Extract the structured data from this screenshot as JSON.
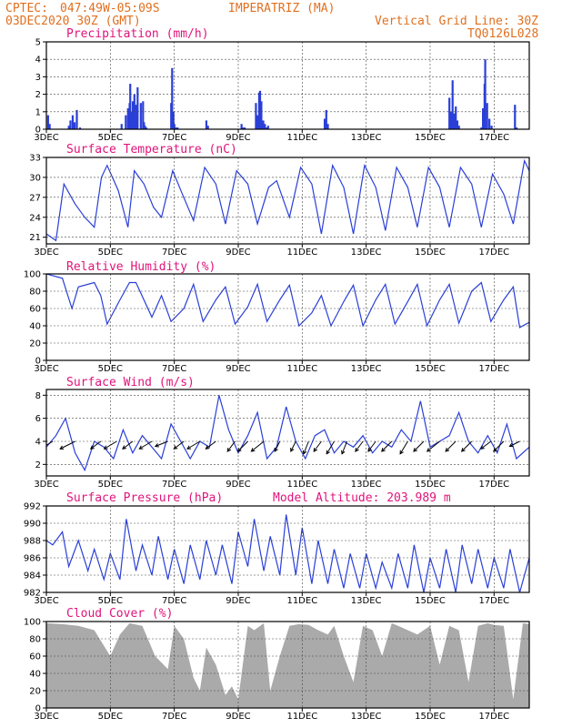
{
  "header": {
    "source": "CPTEC:",
    "coords": "047:49W-05:09S",
    "place": "IMPERATRIZ (MA)",
    "date": "03DEC2020 30Z (GMT)",
    "grid_note": "Vertical Grid Line: 30Z",
    "code": "TQ0126L028"
  },
  "colors": {
    "header": "#e07020",
    "title": "#e0147a",
    "line": "#2a3fd8",
    "cloud": "#aaaaaa",
    "arrow": "#000000"
  },
  "chart_data": [
    {
      "id": "precip",
      "type": "bar",
      "title": "Precipitation (mm/h)",
      "ylim": [
        0,
        5
      ],
      "yticks": [
        "0",
        "1",
        "2",
        "3",
        "4",
        "5"
      ],
      "xlim": [
        3,
        18.1
      ],
      "x_ticks": [
        "3DEC",
        "5DEC",
        "7DEC",
        "9DEC",
        "11DEC",
        "13DEC",
        "15DEC",
        "17DEC"
      ],
      "x": [
        3.05,
        3.1,
        3.7,
        3.75,
        3.82,
        3.88,
        3.95,
        4.05,
        5.35,
        5.48,
        5.55,
        5.6,
        5.62,
        5.65,
        5.7,
        5.75,
        5.8,
        5.85,
        5.95,
        6.02,
        6.05,
        6.08,
        6.12,
        6.9,
        6.93,
        6.97,
        7.0,
        7.05,
        7.1,
        8.0,
        8.05,
        9.1,
        9.15,
        9.2,
        9.55,
        9.6,
        9.65,
        9.68,
        9.72,
        9.78,
        9.83,
        9.88,
        9.93,
        11.7,
        11.75,
        11.8,
        15.6,
        15.65,
        15.7,
        15.75,
        15.8,
        15.85,
        15.9,
        16.6,
        16.65,
        16.7,
        16.72,
        16.78,
        16.85,
        16.92,
        17.65,
        17.7
      ],
      "values": [
        0.8,
        0.3,
        0.2,
        0.5,
        0.8,
        0.4,
        1.1,
        0.1,
        0.3,
        0.8,
        1.2,
        1.5,
        2.6,
        1.0,
        1.6,
        2.0,
        1.4,
        2.4,
        1.5,
        1.6,
        0.4,
        0.2,
        0.1,
        1.5,
        3.5,
        1.0,
        0.3,
        0.1,
        0.1,
        0.5,
        0.2,
        0.3,
        0.1,
        0.1,
        1.5,
        0.8,
        2.1,
        2.2,
        1.6,
        0.5,
        0.3,
        0.1,
        0.2,
        0.6,
        1.1,
        0.3,
        1.8,
        1.0,
        2.8,
        0.9,
        1.3,
        0.5,
        0.2,
        0.1,
        1.2,
        2.6,
        4.0,
        1.5,
        0.6,
        0.2,
        1.4,
        0.1
      ]
    },
    {
      "id": "temperature",
      "type": "line",
      "title": "Surface Temperature (nC)",
      "ylim": [
        20,
        33
      ],
      "yticks": [
        "21",
        "24",
        "27",
        "30",
        "33"
      ],
      "ytick_values": [
        21,
        24,
        27,
        30,
        33
      ],
      "xlim": [
        3,
        18.1
      ],
      "x_ticks": [
        "3DEC",
        "5DEC",
        "7DEC",
        "9DEC",
        "11DEC",
        "13DEC",
        "15DEC",
        "17DEC"
      ],
      "x": [
        3.0,
        3.3,
        3.55,
        3.9,
        4.2,
        4.5,
        4.72,
        4.9,
        5.25,
        5.55,
        5.75,
        6.05,
        6.35,
        6.6,
        6.95,
        7.25,
        7.6,
        7.95,
        8.3,
        8.6,
        8.95,
        9.3,
        9.6,
        9.95,
        10.2,
        10.6,
        10.95,
        11.3,
        11.6,
        11.95,
        12.3,
        12.6,
        12.95,
        13.3,
        13.6,
        13.95,
        14.3,
        14.6,
        14.95,
        15.3,
        15.6,
        15.95,
        16.3,
        16.6,
        16.95,
        17.3,
        17.6,
        17.95,
        18.1
      ],
      "values": [
        21.5,
        20.5,
        29.0,
        26.0,
        24.0,
        22.5,
        30.0,
        31.8,
        28.0,
        22.5,
        31.0,
        29.0,
        25.5,
        24.0,
        31.0,
        27.5,
        23.5,
        31.5,
        29.0,
        23.0,
        31.0,
        29.0,
        23.0,
        28.5,
        29.5,
        24.0,
        31.5,
        29.0,
        21.5,
        31.8,
        28.5,
        21.5,
        31.8,
        28.5,
        22.0,
        31.5,
        28.5,
        22.5,
        31.5,
        28.5,
        22.5,
        31.5,
        29.0,
        22.5,
        30.5,
        27.5,
        23.0,
        32.5,
        31.0
      ]
    },
    {
      "id": "humidity",
      "type": "line",
      "title": "Relative Humidity (%)",
      "ylim": [
        0,
        100
      ],
      "yticks": [
        "0",
        "20",
        "40",
        "60",
        "80",
        "100"
      ],
      "ytick_values": [
        0,
        20,
        40,
        60,
        80,
        100
      ],
      "xlim": [
        3,
        18.1
      ],
      "x_ticks": [
        "3DEC",
        "5DEC",
        "7DEC",
        "9DEC",
        "11DEC",
        "13DEC",
        "15DEC",
        "17DEC"
      ],
      "x": [
        3.0,
        3.5,
        3.8,
        4.0,
        4.5,
        4.7,
        4.9,
        5.3,
        5.6,
        5.8,
        6.3,
        6.6,
        6.9,
        7.3,
        7.6,
        7.9,
        8.3,
        8.6,
        8.9,
        9.3,
        9.6,
        9.9,
        10.3,
        10.6,
        10.9,
        11.3,
        11.6,
        11.9,
        12.3,
        12.6,
        12.9,
        13.3,
        13.6,
        13.9,
        14.3,
        14.6,
        14.9,
        15.3,
        15.6,
        15.9,
        16.3,
        16.6,
        16.9,
        17.3,
        17.6,
        17.8,
        18.1
      ],
      "values": [
        100,
        95,
        60,
        85,
        90,
        75,
        42,
        70,
        90,
        90,
        50,
        75,
        45,
        60,
        88,
        45,
        70,
        85,
        42,
        62,
        88,
        45,
        70,
        87,
        40,
        55,
        75,
        40,
        68,
        87,
        40,
        70,
        88,
        42,
        68,
        88,
        40,
        70,
        88,
        43,
        80,
        90,
        45,
        70,
        85,
        38,
        44
      ]
    },
    {
      "id": "wind",
      "type": "line",
      "title": "Surface Wind (m/s)",
      "ylim": [
        1,
        8.5
      ],
      "yticks": [
        "2",
        "4",
        "6",
        "8"
      ],
      "ytick_values": [
        2,
        4,
        6,
        8
      ],
      "xlim": [
        3,
        18.1
      ],
      "x_ticks": [
        "3DEC",
        "5DEC",
        "7DEC",
        "9DEC",
        "11DEC",
        "13DEC",
        "15DEC",
        "17DEC"
      ],
      "x": [
        3.0,
        3.3,
        3.6,
        3.9,
        4.2,
        4.5,
        4.8,
        5.1,
        5.4,
        5.7,
        6.0,
        6.3,
        6.6,
        6.9,
        7.2,
        7.5,
        7.8,
        8.1,
        8.4,
        8.7,
        9.0,
        9.3,
        9.6,
        9.9,
        10.2,
        10.5,
        10.8,
        11.1,
        11.4,
        11.7,
        12.0,
        12.3,
        12.6,
        12.9,
        13.2,
        13.5,
        13.8,
        14.1,
        14.4,
        14.7,
        15.0,
        15.3,
        15.6,
        15.9,
        16.2,
        16.5,
        16.8,
        17.1,
        17.4,
        17.7,
        18.1
      ],
      "values": [
        3.5,
        4.5,
        6.0,
        3.0,
        1.5,
        4.0,
        3.5,
        2.5,
        5.0,
        3.0,
        4.5,
        3.5,
        2.5,
        5.5,
        4.0,
        2.5,
        4.0,
        3.5,
        8.0,
        5.0,
        3.0,
        4.5,
        6.5,
        2.5,
        3.5,
        7.0,
        4.0,
        2.5,
        4.5,
        5.0,
        3.0,
        4.0,
        3.5,
        4.5,
        3.0,
        4.0,
        3.5,
        5.0,
        4.0,
        7.5,
        3.5,
        4.0,
        4.5,
        6.5,
        4.0,
        3.0,
        4.5,
        3.0,
        5.5,
        2.5,
        3.5
      ],
      "arrow_times": [
        3.2,
        3.9,
        4.7,
        5.2,
        5.7,
        6.3,
        6.8,
        7.3,
        7.8,
        8.3,
        8.9,
        9.3,
        9.8,
        10.3,
        10.8,
        11.2,
        11.6,
        12.0,
        12.4,
        12.9,
        13.3,
        13.8,
        14.3,
        14.8,
        15.3,
        15.8,
        16.3,
        16.9,
        17.3,
        17.8
      ],
      "arrow_u": [
        2.5,
        3.0,
        2.0,
        2.5,
        2.0,
        2.5,
        2.5,
        2.0,
        2.5,
        2.0,
        1.5,
        2.0,
        2.5,
        1.0,
        1.0,
        1.0,
        1.5,
        1.5,
        1.0,
        1.5,
        1.5,
        2.0,
        1.5,
        2.0,
        2.5,
        2.0,
        2.0,
        2.0,
        2.0,
        2.0
      ],
      "arrow_v": [
        1.5,
        1.5,
        1.5,
        1.5,
        1.5,
        1.5,
        1.0,
        1.5,
        1.5,
        1.5,
        2.0,
        2.0,
        2.0,
        2.0,
        2.0,
        2.5,
        2.0,
        2.5,
        2.5,
        2.0,
        2.0,
        2.0,
        2.5,
        2.0,
        2.0,
        2.0,
        2.0,
        1.5,
        2.0,
        1.0
      ]
    },
    {
      "id": "pressure",
      "type": "line",
      "title": "Surface Pressure (hPa)",
      "annotation": "Model Altitude: 203.989 m",
      "ylim": [
        982,
        992
      ],
      "yticks": [
        "982",
        "984",
        "986",
        "988",
        "990",
        "992"
      ],
      "ytick_values": [
        982,
        984,
        986,
        988,
        990,
        992
      ],
      "xlim": [
        3,
        18.1
      ],
      "x_ticks": [
        "3DEC",
        "5DEC",
        "7DEC",
        "9DEC",
        "11DEC",
        "13DEC",
        "15DEC",
        "17DEC"
      ],
      "x": [
        3.0,
        3.2,
        3.5,
        3.7,
        4.0,
        4.3,
        4.5,
        4.8,
        5.0,
        5.3,
        5.5,
        5.8,
        6.0,
        6.3,
        6.5,
        6.8,
        7.0,
        7.3,
        7.5,
        7.8,
        8.0,
        8.3,
        8.5,
        8.8,
        9.0,
        9.3,
        9.5,
        9.8,
        10.0,
        10.3,
        10.5,
        10.8,
        11.0,
        11.3,
        11.5,
        11.8,
        12.0,
        12.3,
        12.5,
        12.8,
        13.0,
        13.3,
        13.5,
        13.8,
        14.0,
        14.3,
        14.5,
        14.8,
        15.0,
        15.3,
        15.5,
        15.8,
        16.0,
        16.3,
        16.5,
        16.8,
        17.0,
        17.3,
        17.5,
        17.8,
        18.1
      ],
      "values": [
        988,
        987.5,
        989,
        985,
        988,
        984.5,
        987,
        983.5,
        986.5,
        983.5,
        990.5,
        984.5,
        987.5,
        984,
        988.5,
        983.5,
        987,
        983,
        987.5,
        983.5,
        988,
        984,
        987.5,
        983,
        989,
        985,
        990.5,
        984.5,
        988.5,
        984,
        991,
        984,
        989.5,
        983,
        988,
        983,
        987,
        982.5,
        986.5,
        982.5,
        986.5,
        982.5,
        985.5,
        982.5,
        986.5,
        982.5,
        987.5,
        982,
        986,
        982.5,
        987,
        982,
        987.5,
        983,
        987,
        982.5,
        986,
        982.5,
        987,
        982,
        986
      ]
    },
    {
      "id": "cloud",
      "type": "area",
      "title": "Cloud Cover (%)",
      "ylim": [
        0,
        100
      ],
      "yticks": [
        "0",
        "20",
        "40",
        "60",
        "80",
        "100"
      ],
      "ytick_values": [
        0,
        20,
        40,
        60,
        80,
        100
      ],
      "xlim": [
        3,
        18.1
      ],
      "x_ticks": [
        "3DEC",
        "5DEC",
        "7DEC",
        "9DEC",
        "11DEC",
        "13DEC",
        "15DEC",
        "17DEC"
      ],
      "x": [
        3.0,
        3.5,
        4.0,
        4.5,
        5.0,
        5.3,
        5.6,
        6.0,
        6.4,
        6.8,
        7.0,
        7.3,
        7.6,
        7.8,
        8.0,
        8.3,
        8.6,
        8.8,
        9.0,
        9.3,
        9.5,
        9.8,
        10.0,
        10.3,
        10.6,
        10.9,
        11.2,
        11.5,
        11.8,
        12.0,
        12.3,
        12.6,
        12.9,
        13.2,
        13.5,
        13.8,
        14.0,
        14.3,
        14.6,
        15.0,
        15.3,
        15.6,
        15.9,
        16.2,
        16.5,
        16.8,
        17.0,
        17.3,
        17.6,
        17.9,
        18.1
      ],
      "values": [
        98,
        97,
        95,
        90,
        60,
        85,
        98,
        95,
        60,
        45,
        95,
        80,
        35,
        20,
        70,
        50,
        15,
        25,
        10,
        95,
        90,
        98,
        20,
        60,
        95,
        97,
        96,
        90,
        85,
        95,
        60,
        30,
        95,
        90,
        60,
        98,
        95,
        90,
        85,
        95,
        50,
        95,
        90,
        30,
        95,
        98,
        96,
        95,
        10,
        98,
        97
      ]
    }
  ]
}
